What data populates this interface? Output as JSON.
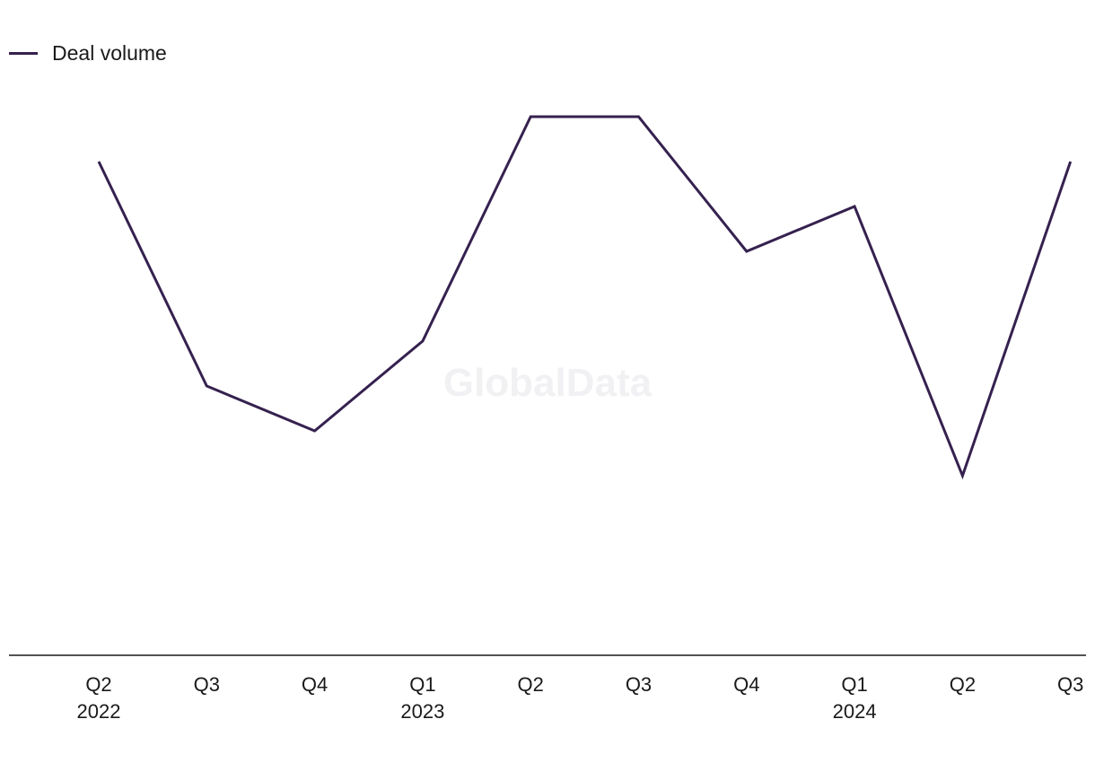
{
  "watermark": "GlobalData",
  "colors": {
    "series": "#35214f",
    "axis": "#1a1a1a",
    "text": "#1a1a1a",
    "watermark": "#f1f0f3"
  },
  "chart_data": {
    "type": "line",
    "title": "",
    "xlabel": "",
    "ylabel": "",
    "legend": "top-left",
    "grid": false,
    "ylim": [
      0,
      12
    ],
    "categories": [
      {
        "quarter": "Q2",
        "year": "2022"
      },
      {
        "quarter": "Q3",
        "year": ""
      },
      {
        "quarter": "Q4",
        "year": ""
      },
      {
        "quarter": "Q1",
        "year": "2023"
      },
      {
        "quarter": "Q2",
        "year": ""
      },
      {
        "quarter": "Q3",
        "year": ""
      },
      {
        "quarter": "Q4",
        "year": ""
      },
      {
        "quarter": "Q1",
        "year": "2024"
      },
      {
        "quarter": "Q2",
        "year": ""
      },
      {
        "quarter": "Q3",
        "year": ""
      }
    ],
    "series": [
      {
        "name": "Deal volume",
        "values": [
          11,
          6,
          5,
          7,
          12,
          12,
          9,
          10,
          4,
          11
        ]
      }
    ]
  }
}
